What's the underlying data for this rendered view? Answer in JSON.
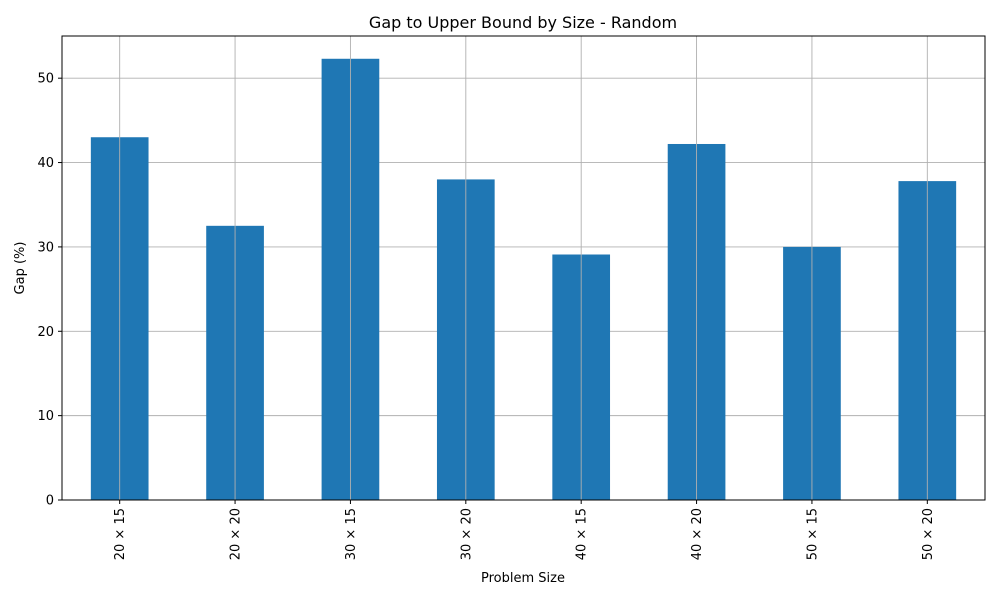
{
  "chart_data": {
    "type": "bar",
    "title": "Gap to Upper Bound by Size - Random",
    "xlabel": "Problem Size",
    "ylabel": "Gap (%)",
    "categories": [
      "20 × 15",
      "20 × 20",
      "30 × 15",
      "30 × 20",
      "40 × 15",
      "40 × 20",
      "50 × 15",
      "50 × 20"
    ],
    "values": [
      43.0,
      32.5,
      52.3,
      38.0,
      29.1,
      42.2,
      30.0,
      37.8
    ],
    "ylim": [
      0,
      55
    ],
    "yticks": [
      0,
      10,
      20,
      30,
      40,
      50
    ],
    "grid": true,
    "bar_color": "#1f77b4",
    "grid_color": "#b0b0b0",
    "tick_label_rotation": "vertical"
  }
}
